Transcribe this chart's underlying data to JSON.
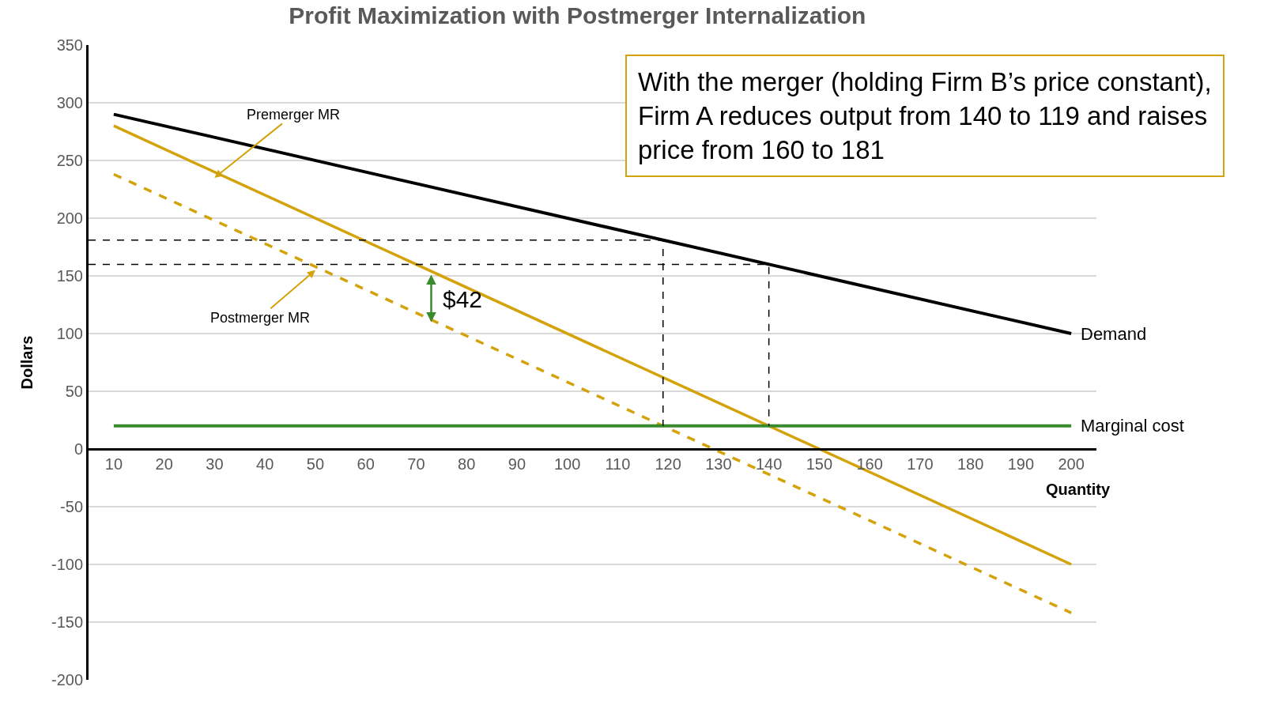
{
  "chart_data": {
    "type": "line",
    "title": "Profit Maximization with Postmerger Internalization",
    "xlabel": "Quantity",
    "ylabel": "Dollars",
    "xlim": [
      5,
      205
    ],
    "xticks": [
      10,
      20,
      30,
      40,
      50,
      60,
      70,
      80,
      90,
      100,
      110,
      120,
      130,
      140,
      150,
      160,
      170,
      180,
      190,
      200
    ],
    "ylim": [
      -200,
      350
    ],
    "yticks": [
      -200,
      -150,
      -100,
      -50,
      0,
      50,
      100,
      150,
      200,
      250,
      300,
      350
    ],
    "grid": "y",
    "series": [
      {
        "name": "Demand",
        "color": "#000000",
        "x": [
          10,
          200
        ],
        "values": [
          290,
          100
        ],
        "line_style": "solid"
      },
      {
        "color": "#d4a20a",
        "x": [
          10,
          200
        ],
        "values": [
          280,
          -100
        ],
        "line_style": "solid"
      },
      {
        "color": "#d4a20a",
        "x": [
          10,
          200
        ],
        "values": [
          238,
          -142
        ],
        "line_style": "dashed"
      },
      {
        "name": "Marginal cost",
        "color": "#3a8a2e",
        "x": [
          10,
          200
        ],
        "values": [
          20,
          20
        ],
        "line_style": "solid"
      },
      {
        "color": "#000000",
        "x": [
          5,
          119,
          119
        ],
        "values": [
          181,
          181,
          20
        ],
        "line_style": "dashed"
      },
      {
        "color": "#000000",
        "x": [
          5,
          140,
          140
        ],
        "values": [
          160,
          160,
          20
        ],
        "line_style": "dashed"
      }
    ],
    "annotations": [
      {
        "text": "Premerger MR",
        "x": 30,
        "y": 235
      },
      {
        "text": "Postmerger MR",
        "x": 50,
        "y": 155
      },
      "$42",
      "With the merger (holding Firm B’s price constant),\nFirm A reduces output from 140 to 119 and raises\nprice from 160 to 181"
    ]
  }
}
